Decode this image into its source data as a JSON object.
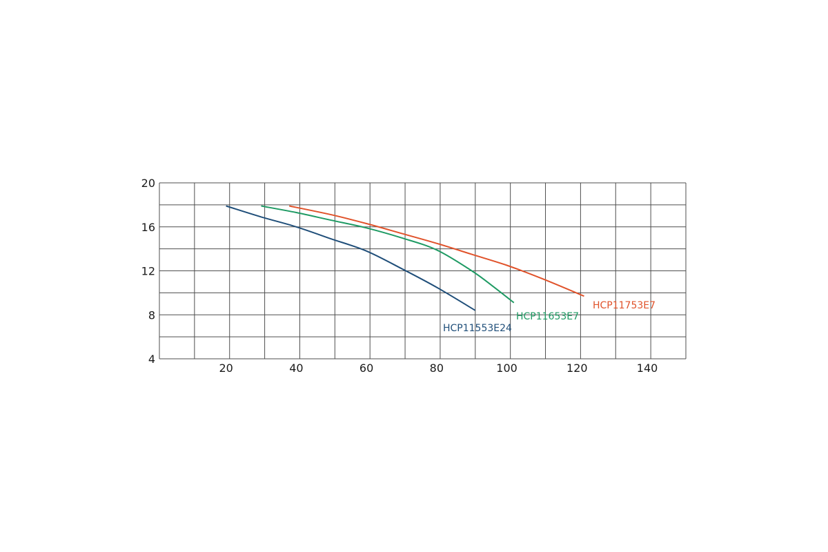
{
  "chart_data": {
    "type": "line",
    "title": "",
    "xlabel": "",
    "ylabel": "",
    "xlim": [
      1,
      151
    ],
    "ylim": [
      4,
      20
    ],
    "x_gridlines": [
      1,
      11,
      21,
      31,
      41,
      51,
      61,
      71,
      81,
      91,
      101,
      111,
      121,
      131,
      141,
      151
    ],
    "y_gridlines": [
      4,
      6,
      8,
      10,
      12,
      14,
      16,
      18,
      20
    ],
    "x_tick_values": [
      20,
      40,
      60,
      80,
      100,
      120,
      140
    ],
    "x_tick_labels": [
      "20",
      "40",
      "60",
      "80",
      "100",
      "120",
      "140"
    ],
    "y_tick_values": [
      4,
      8,
      12,
      16,
      20
    ],
    "y_tick_labels": [
      "4",
      "8",
      "12",
      "16",
      "20"
    ],
    "grid": true,
    "legend": "inline labels at curve ends",
    "series": [
      {
        "name": "HCP11553E24",
        "color": "#1f4e79",
        "points": [
          [
            20,
            17.9
          ],
          [
            30,
            16.9
          ],
          [
            40,
            16.0
          ],
          [
            50,
            14.9
          ],
          [
            60,
            13.8
          ],
          [
            70,
            12.2
          ],
          [
            80,
            10.5
          ],
          [
            91,
            8.4
          ]
        ]
      },
      {
        "name": "HCP11653E7",
        "color": "#1e9a63",
        "points": [
          [
            30,
            17.9
          ],
          [
            40,
            17.3
          ],
          [
            50,
            16.6
          ],
          [
            60,
            15.9
          ],
          [
            70,
            15.0
          ],
          [
            80,
            13.9
          ],
          [
            90,
            12.0
          ],
          [
            96,
            10.6
          ],
          [
            102,
            9.1
          ]
        ]
      },
      {
        "name": "HCP11753E7",
        "color": "#e0522a",
        "points": [
          [
            38,
            17.9
          ],
          [
            50,
            17.1
          ],
          [
            60,
            16.3
          ],
          [
            70,
            15.4
          ],
          [
            80,
            14.5
          ],
          [
            90,
            13.5
          ],
          [
            100,
            12.5
          ],
          [
            110,
            11.3
          ],
          [
            122,
            9.7
          ]
        ]
      }
    ]
  }
}
